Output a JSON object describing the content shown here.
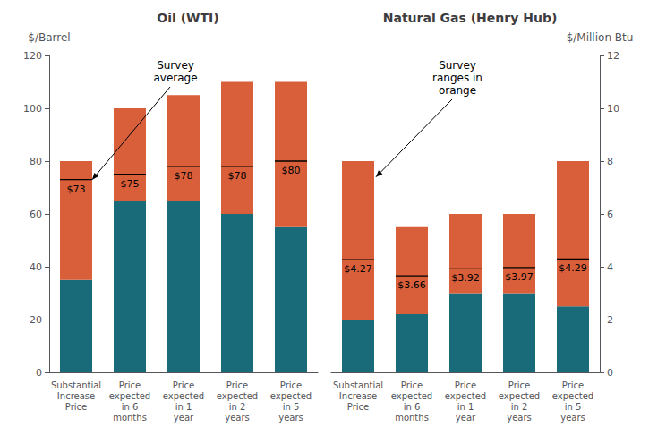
{
  "chart_data": [
    {
      "type": "bar",
      "title": "Oil (WTI)",
      "ylabel": "$/Barrel",
      "categories": [
        "Substantial\nIncrease\nPrice",
        "Price\nexpected\nin 6\nmonths",
        "Price\nexpected\nin 1\nyear",
        "Price\nexpected\nin 2\nyears",
        "Price\nexpected\nin 5\nyears"
      ],
      "stacked": true,
      "grid": false,
      "ylim": [
        0,
        120
      ],
      "yticks": [
        0,
        20,
        40,
        60,
        80,
        100,
        120
      ],
      "series": [
        {
          "color": "#1a6b7a",
          "values": [
            35,
            65,
            65,
            60,
            55
          ]
        },
        {
          "color": "#d95f3b",
          "values": [
            45,
            35,
            40,
            50,
            55
          ]
        },
        {
          "type": "scatter",
          "marker": "hline",
          "color": "#000000",
          "data_labels": true,
          "values": [
            73,
            75,
            78,
            78,
            80
          ],
          "value_labels": [
            "$73",
            "$75",
            "$78",
            "$78",
            "$80"
          ]
        }
      ],
      "annotation": "Survey\naverage"
    },
    {
      "type": "bar",
      "title": "Natural Gas (Henry Hub)",
      "ylabel": "$/Million Btu",
      "categories": [
        "Substantial\nIncrease\nPrice",
        "Price\nexpected\nin 6\nmonths",
        "Price\nexpected\nin 1\nyear",
        "Price\nexpected\nin 2\nyears",
        "Price\nexpected\nin 5\nyears"
      ],
      "stacked": true,
      "grid": false,
      "ylim": [
        0,
        12
      ],
      "yticks": [
        0,
        2,
        4,
        6,
        8,
        10,
        12
      ],
      "series": [
        {
          "color": "#1a6b7a",
          "values": [
            2.0,
            2.2,
            3.0,
            3.0,
            2.5
          ]
        },
        {
          "color": "#d95f3b",
          "values": [
            6.0,
            3.3,
            3.0,
            3.0,
            5.5
          ]
        },
        {
          "type": "scatter",
          "marker": "hline",
          "color": "#000000",
          "data_labels": true,
          "values": [
            4.27,
            3.66,
            3.92,
            3.97,
            4.29
          ],
          "value_labels": [
            "$4.27",
            "$3.66",
            "$3.92",
            "$3.97",
            "$4.29"
          ]
        }
      ],
      "annotation": "Survey\nranges in\norange"
    }
  ]
}
